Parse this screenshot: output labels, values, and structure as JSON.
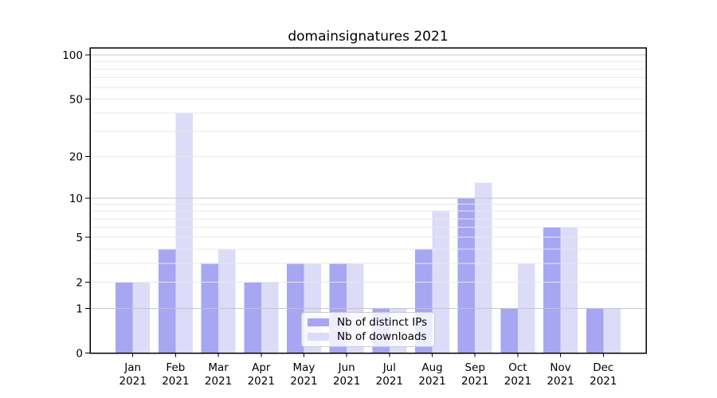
{
  "chart_data": {
    "type": "bar",
    "title": "domainsignatures 2021",
    "categories": [
      "Jan",
      "Feb",
      "Mar",
      "Apr",
      "May",
      "Jun",
      "Jul",
      "Aug",
      "Sep",
      "Oct",
      "Nov",
      "Dec"
    ],
    "year": "2021",
    "series": [
      {
        "name": "Nb of distinct IPs",
        "color": "#a6a6f2",
        "values": [
          2,
          4,
          3,
          2,
          3,
          3,
          1,
          4,
          10,
          1,
          6,
          1
        ]
      },
      {
        "name": "Nb of downloads",
        "color": "#dcdcf8",
        "values": [
          2,
          40,
          4,
          2,
          3,
          3,
          1,
          8,
          13,
          3,
          6,
          1
        ]
      }
    ],
    "y_scale": "log1p",
    "ylim": [
      0,
      112
    ],
    "y_ticks": [
      0,
      1,
      2,
      5,
      10,
      20,
      50,
      100
    ],
    "grid": {
      "major": [
        1,
        10,
        100
      ],
      "minor": [
        2,
        3,
        4,
        5,
        6,
        7,
        8,
        9,
        20,
        30,
        40,
        50,
        60,
        70,
        80,
        90
      ],
      "major_color": "#c6c6c6",
      "minor_color": "#e9e9e9"
    },
    "legend_position": "lower center",
    "axis_color": "#000000",
    "background_color": "#ffffff"
  }
}
